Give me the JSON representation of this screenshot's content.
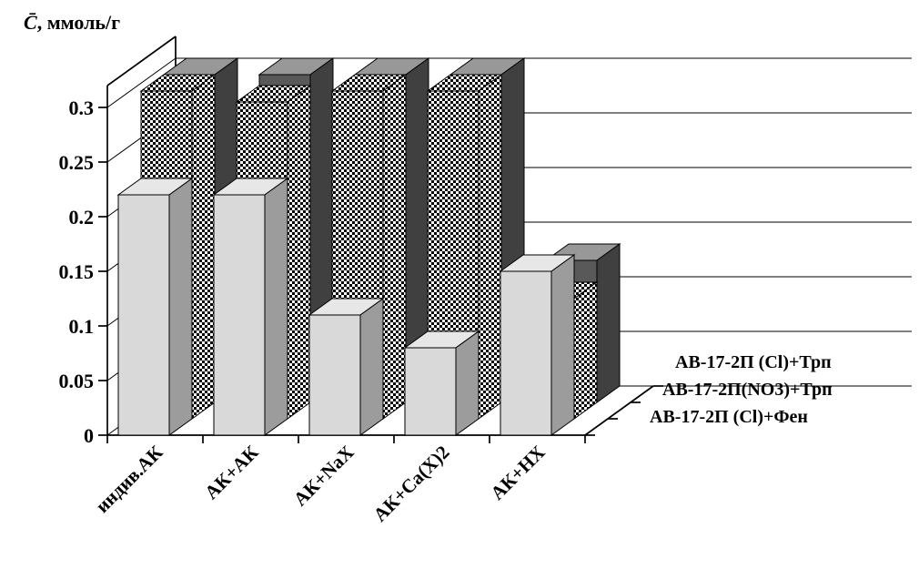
{
  "figure": {
    "y_axis_title_var": "C̄",
    "y_axis_title_units": ", ммоль/г"
  },
  "chart_data": {
    "type": "bar",
    "projection": "3d-column",
    "title": "",
    "ylabel": "C̄, ммоль/г",
    "xlabel": "",
    "background": "#ffffff",
    "categories": [
      "индив.АК",
      "АК+АК",
      "АК+NaX",
      "АК+Ca(X)2",
      "АК+HX"
    ],
    "series": [
      {
        "name": "АВ-17-2П (Cl)+Фен",
        "depth_row": "front",
        "fill": "#d9d9d9",
        "pattern": "solid",
        "values": [
          0.22,
          0.22,
          0.11,
          0.08,
          0.15
        ]
      },
      {
        "name": "АВ-17-2П(NO3)+Трп",
        "depth_row": "middle",
        "fill": "#ffffff",
        "pattern": "checkerboard",
        "values": [
          0.3,
          0.29,
          0.3,
          0.3,
          0.11
        ]
      },
      {
        "name": "АВ-17-2П (Cl)+Трп",
        "depth_row": "back",
        "fill": "#595959",
        "pattern": "solid",
        "values": [
          0.3,
          0.3,
          0.3,
          0.3,
          0.13
        ]
      }
    ],
    "yticks": [
      0,
      0.05,
      0.1,
      0.15,
      0.2,
      0.25,
      0.3
    ],
    "ytick_labels": [
      "0",
      "0.05",
      "0.1",
      "0.15",
      "0.2",
      "0.25",
      "0.3"
    ],
    "ylim": [
      0,
      0.32
    ],
    "grid": true,
    "legend_position": "right"
  }
}
